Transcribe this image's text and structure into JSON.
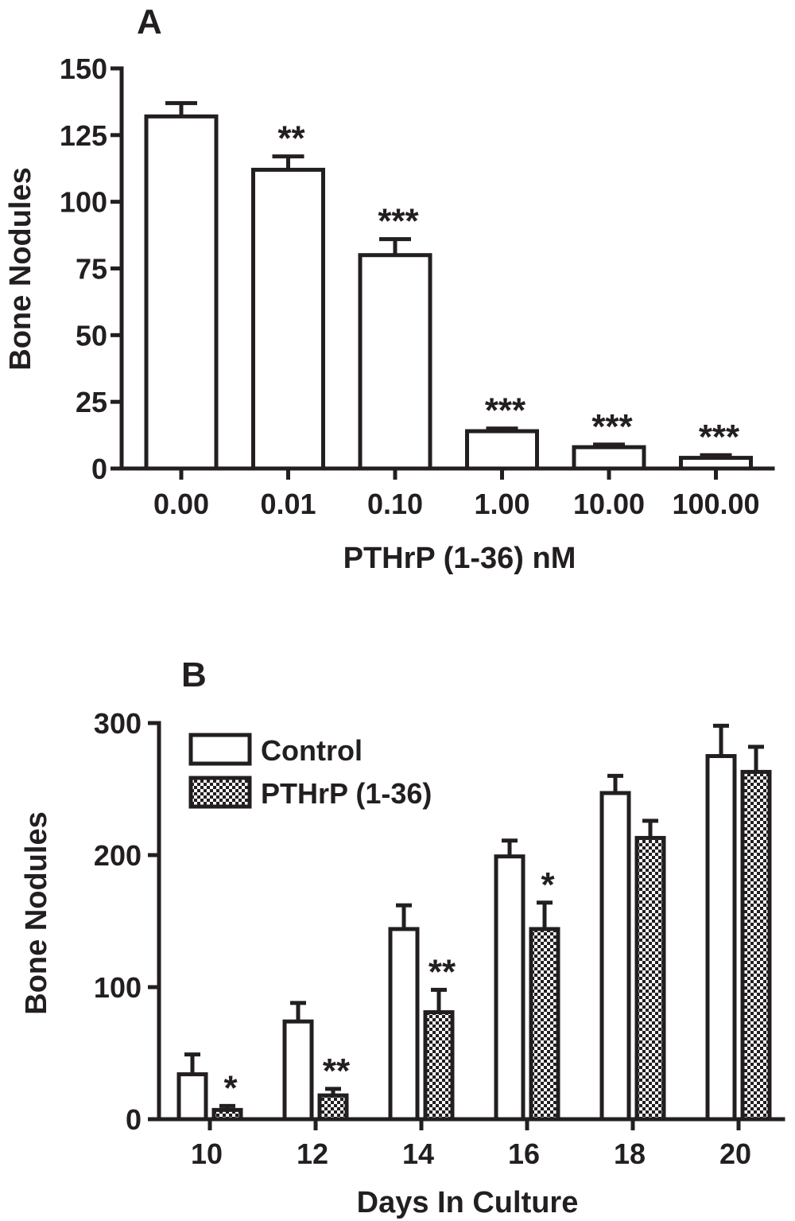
{
  "chart_data": [
    {
      "type": "bar",
      "panel_label": "A",
      "title": "",
      "xlabel": "PTHrP (1-36) nM",
      "ylabel": "Bone Nodules",
      "ylim": [
        0,
        150
      ],
      "yticks": [
        "0",
        "25",
        "50",
        "75",
        "100",
        "125",
        "150"
      ],
      "categories": [
        "0.00",
        "0.01",
        "0.10",
        "1.00",
        "10.00",
        "100.00"
      ],
      "values": [
        132,
        112,
        80,
        14,
        8,
        4
      ],
      "errors": [
        5,
        5,
        6,
        1,
        1,
        1
      ],
      "significance": [
        "",
        "**",
        "***",
        "***",
        "***",
        "***"
      ],
      "grid": false
    },
    {
      "type": "bar",
      "panel_label": "B",
      "title": "",
      "xlabel": "Days In Culture",
      "ylabel": "Bone Nodules",
      "ylim": [
        0,
        300
      ],
      "yticks": [
        "0",
        "100",
        "200",
        "300"
      ],
      "categories": [
        "10",
        "12",
        "14",
        "16",
        "18",
        "20"
      ],
      "series": [
        {
          "name": "Control",
          "pattern": "open",
          "values": [
            34,
            74,
            144,
            199,
            247,
            275
          ],
          "errors": [
            15,
            14,
            18,
            12,
            13,
            23
          ],
          "significance": [
            "",
            "",
            "",
            "",
            "",
            ""
          ]
        },
        {
          "name": "PTHrP (1-36)",
          "pattern": "checkered",
          "values": [
            7,
            18,
            81,
            144,
            213,
            263
          ],
          "errors": [
            3,
            5,
            17,
            20,
            13,
            19
          ],
          "significance": [
            "*",
            "**",
            "**",
            "*",
            "",
            ""
          ]
        }
      ],
      "legend_position": "top-left",
      "grid": false
    }
  ]
}
